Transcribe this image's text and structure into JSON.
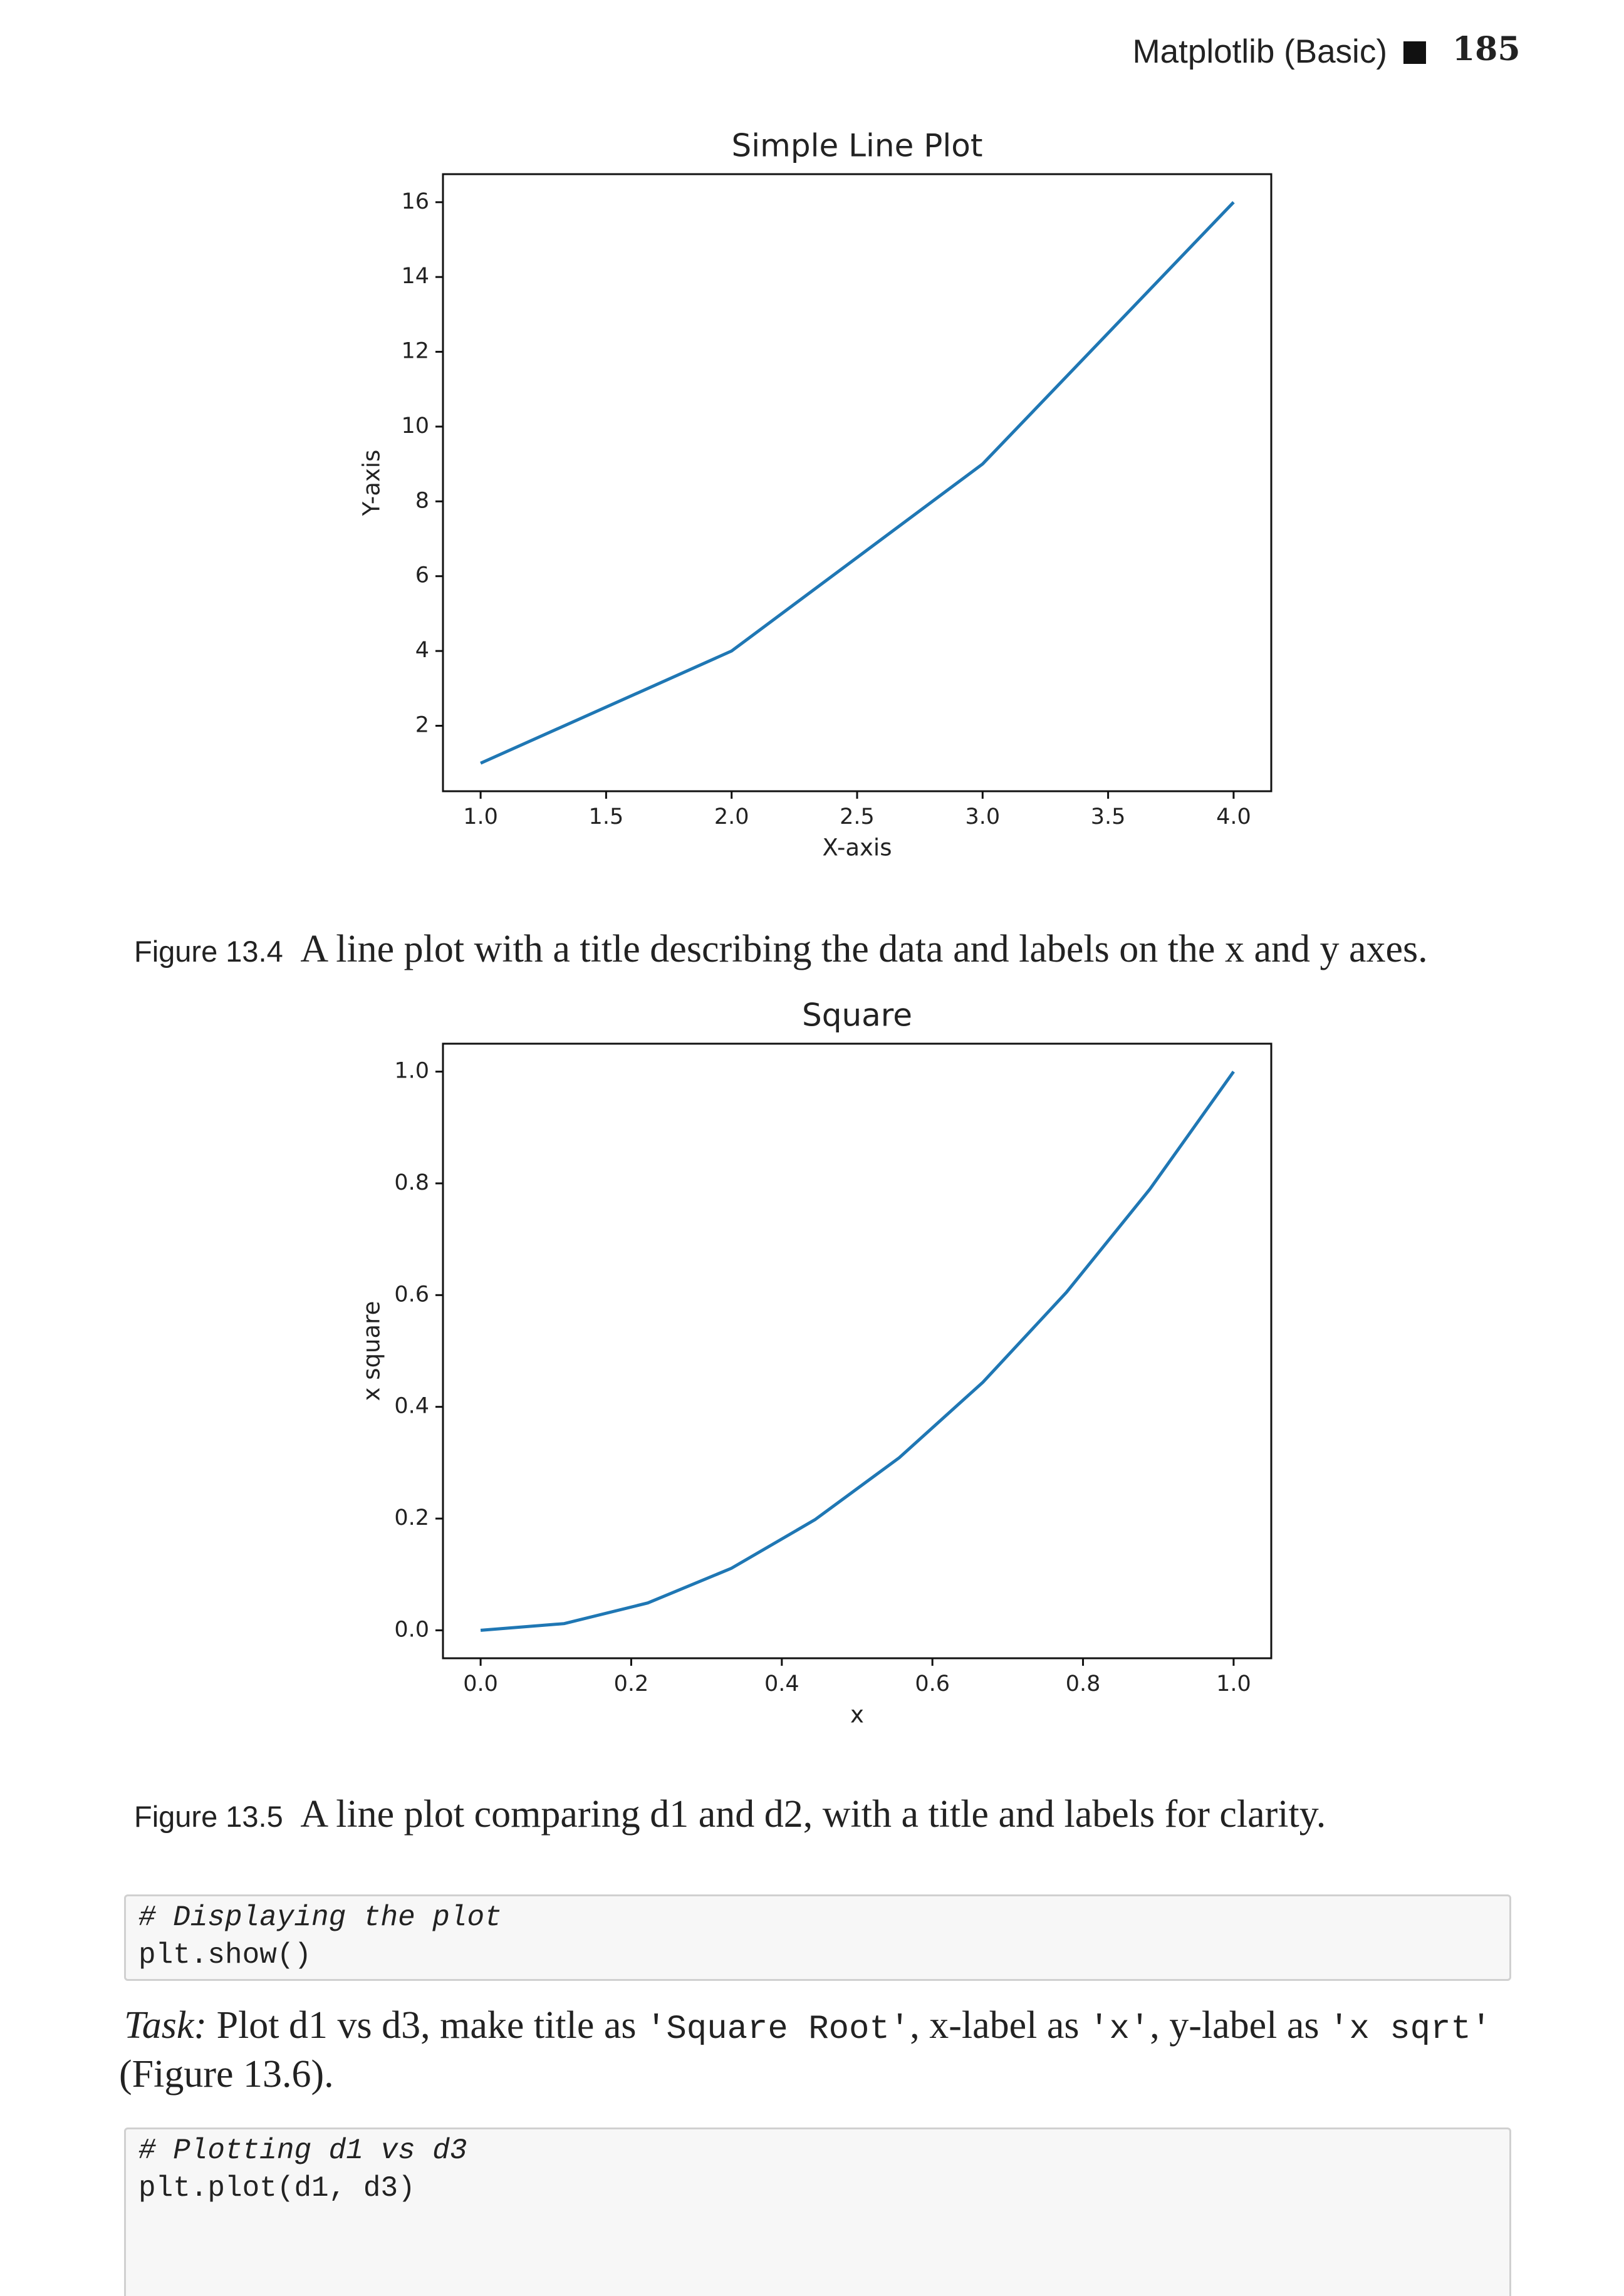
{
  "header": {
    "section": "Matplotlib (Basic)",
    "page": "185"
  },
  "chart_data": [
    {
      "type": "line",
      "title": "Simple Line Plot",
      "x_label": "X-axis",
      "y_label": "Y-axis",
      "x": [
        1,
        2,
        3,
        4
      ],
      "series": [
        {
          "color": "#1f77b4",
          "values": [
            1,
            4,
            9,
            16
          ]
        }
      ],
      "xlim": [
        0.85,
        4.15
      ],
      "ylim": [
        0.25,
        16.75
      ],
      "xticks": [
        {
          "value": 1,
          "label": "1.0"
        },
        1.5,
        {
          "value": 2,
          "label": "2.0"
        },
        2.5,
        {
          "value": 3,
          "label": "3.0"
        },
        3.5,
        {
          "value": 4,
          "label": "4.0"
        }
      ],
      "yticks": [
        2,
        4,
        6,
        8,
        10,
        12,
        14,
        16
      ]
    },
    {
      "type": "line",
      "title": "Square",
      "x_label": "x",
      "y_label": "x square",
      "x": [
        0,
        0.111,
        0.222,
        0.333,
        0.444,
        0.556,
        0.667,
        0.778,
        0.889,
        1.0
      ],
      "series": [
        {
          "color": "#1f77b4",
          "values": [
            0,
            0.012,
            0.049,
            0.111,
            0.198,
            0.309,
            0.444,
            0.605,
            0.79,
            1.0
          ]
        }
      ],
      "xlim": [
        -0.05,
        1.05
      ],
      "ylim": [
        -0.05,
        1.05
      ],
      "xticks": [
        {
          "value": 0,
          "label": "0.0"
        },
        0.2,
        0.4,
        0.6,
        0.8,
        {
          "value": 1,
          "label": "1.0"
        }
      ],
      "yticks": [
        {
          "value": 0,
          "label": "0.0"
        },
        0.2,
        0.4,
        0.6,
        0.8,
        {
          "value": 1,
          "label": "1.0"
        }
      ]
    }
  ],
  "captions": [
    {
      "label": "Figure 13.4",
      "text": "A line plot with a title describing the data and labels on the x and y axes."
    },
    {
      "label": "Figure 13.5",
      "text": "A line plot comparing d1 and d2, with a title and labels for clarity."
    }
  ],
  "code_blocks": [
    [
      "# Displaying the plot",
      "plt.show()"
    ],
    [
      "# Plotting d1 vs d3",
      "plt.plot(d1, d3)"
    ]
  ],
  "task": {
    "label": "Task:",
    "parts": [
      " Plot d1 vs d3, make title as ",
      "'Square Root'",
      ", x-label as ",
      "'x'",
      ", y-label as ",
      "'x sqrt'"
    ],
    "line2": "(Figure 13.6)."
  }
}
